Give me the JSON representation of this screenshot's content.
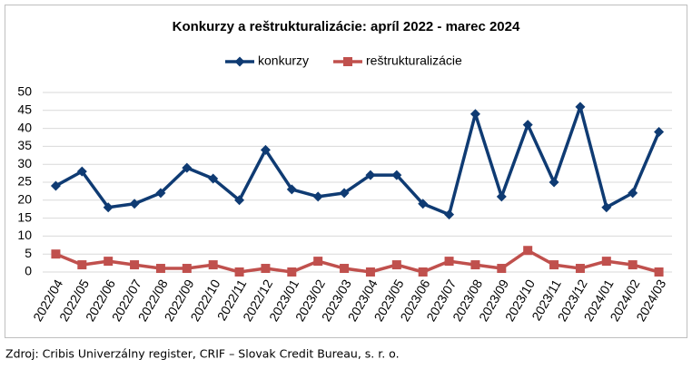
{
  "chart_data": {
    "type": "line",
    "title": "Konkurzy a reštrukturalizácie: apríl 2022 - marec 2024",
    "source": "Zdroj: Cribis Univerzálny register, CRIF – Slovak Credit Bureau, s. r. o.",
    "categories": [
      "2022/04",
      "2022/05",
      "2022/06",
      "2022/07",
      "2022/08",
      "2022/09",
      "2022/10",
      "2022/11",
      "2022/12",
      "2023/01",
      "2023/02",
      "2023/03",
      "2023/04",
      "2023/05",
      "2023/06",
      "2023/07",
      "2023/08",
      "2023/09",
      "2023/10",
      "2023/11",
      "2023/12",
      "2024/01",
      "2024/02",
      "2024/03"
    ],
    "series": [
      {
        "name": "konkurzy",
        "color": "#0f3b73",
        "marker": "diamond",
        "values": [
          24,
          28,
          18,
          19,
          22,
          29,
          26,
          20,
          34,
          23,
          21,
          22,
          27,
          27,
          19,
          16,
          44,
          21,
          41,
          25,
          46,
          18,
          22,
          39
        ]
      },
      {
        "name": "reštrukturalizácie",
        "color": "#c0504d",
        "marker": "square",
        "values": [
          5,
          2,
          3,
          2,
          1,
          1,
          2,
          0,
          1,
          0,
          3,
          1,
          0,
          2,
          0,
          3,
          2,
          1,
          6,
          2,
          1,
          3,
          2,
          0
        ]
      }
    ],
    "ylim": [
      0,
      50
    ],
    "yticks": [
      0,
      5,
      10,
      15,
      20,
      25,
      30,
      35,
      40,
      45,
      50
    ],
    "grid": true,
    "legend": "top"
  }
}
